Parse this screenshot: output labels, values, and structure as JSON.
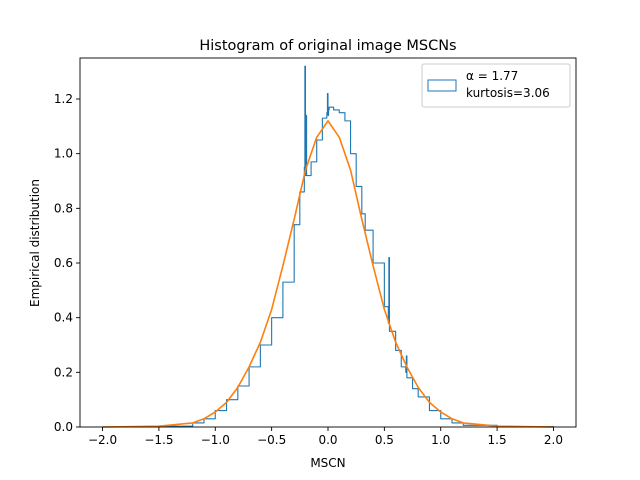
{
  "chart_data": {
    "type": "line",
    "title": "Histogram of original image MSCNs",
    "xlabel": "MSCN",
    "ylabel": "Empirical distribution",
    "xlim": [
      -2.2,
      2.2
    ],
    "ylim": [
      0.0,
      1.35
    ],
    "xticks": [
      -2.0,
      -1.5,
      -1.0,
      -0.5,
      0.0,
      0.5,
      1.0,
      1.5,
      2.0
    ],
    "xtick_labels": [
      "−2.0",
      "−1.5",
      "−1.0",
      "−0.5",
      "0.0",
      "0.5",
      "1.0",
      "1.5",
      "2.0"
    ],
    "yticks": [
      0.0,
      0.2,
      0.4,
      0.6,
      0.8,
      1.0,
      1.2
    ],
    "ytick_labels": [
      "0.0",
      "0.2",
      "0.4",
      "0.6",
      "0.8",
      "1.0",
      "1.2"
    ],
    "grid": false,
    "legend_position": "top-right",
    "legend": {
      "line1": "α = 1.77",
      "line2": "kurtosis=3.06"
    },
    "series": [
      {
        "name": "α = 1.77\nkurtosis=3.06",
        "style": "step",
        "color": "#1f77b4",
        "x": [
          -2.0,
          -1.5,
          -1.2,
          -1.1,
          -1.0,
          -0.9,
          -0.8,
          -0.7,
          -0.6,
          -0.5,
          -0.4,
          -0.3,
          -0.25,
          -0.21,
          -0.205,
          -0.2,
          -0.195,
          -0.19,
          -0.15,
          -0.1,
          -0.05,
          -0.01,
          -0.005,
          0.0,
          0.005,
          0.01,
          0.05,
          0.1,
          0.15,
          0.2,
          0.25,
          0.3,
          0.33,
          0.4,
          0.5,
          0.535,
          0.54,
          0.545,
          0.6,
          0.65,
          0.69,
          0.695,
          0.7,
          0.75,
          0.8,
          0.9,
          1.0,
          1.1,
          1.2,
          1.5,
          2.0
        ],
        "y": [
          0.0,
          0.003,
          0.015,
          0.03,
          0.06,
          0.1,
          0.15,
          0.22,
          0.3,
          0.4,
          0.53,
          0.74,
          0.86,
          0.95,
          1.32,
          0.92,
          1.14,
          0.92,
          0.97,
          1.05,
          1.13,
          1.15,
          1.22,
          1.14,
          1.16,
          1.17,
          1.16,
          1.15,
          1.12,
          1.0,
          0.88,
          0.78,
          0.72,
          0.6,
          0.44,
          0.38,
          0.62,
          0.35,
          0.28,
          0.22,
          0.2,
          0.26,
          0.18,
          0.14,
          0.11,
          0.06,
          0.03,
          0.015,
          0.006,
          0.001,
          0.0
        ]
      },
      {
        "name": "fit",
        "style": "line",
        "color": "#ff7f0e",
        "x": [
          -2.0,
          -1.5,
          -1.2,
          -1.1,
          -1.0,
          -0.9,
          -0.8,
          -0.7,
          -0.6,
          -0.5,
          -0.4,
          -0.3,
          -0.2,
          -0.1,
          0.0,
          0.1,
          0.2,
          0.3,
          0.4,
          0.5,
          0.6,
          0.7,
          0.8,
          0.9,
          1.0,
          1.1,
          1.2,
          1.5,
          2.0
        ],
        "y": [
          0.0,
          0.003,
          0.015,
          0.03,
          0.055,
          0.09,
          0.145,
          0.22,
          0.31,
          0.43,
          0.59,
          0.76,
          0.94,
          1.06,
          1.12,
          1.06,
          0.94,
          0.76,
          0.59,
          0.43,
          0.31,
          0.22,
          0.145,
          0.09,
          0.055,
          0.03,
          0.015,
          0.003,
          0.0
        ]
      }
    ]
  }
}
